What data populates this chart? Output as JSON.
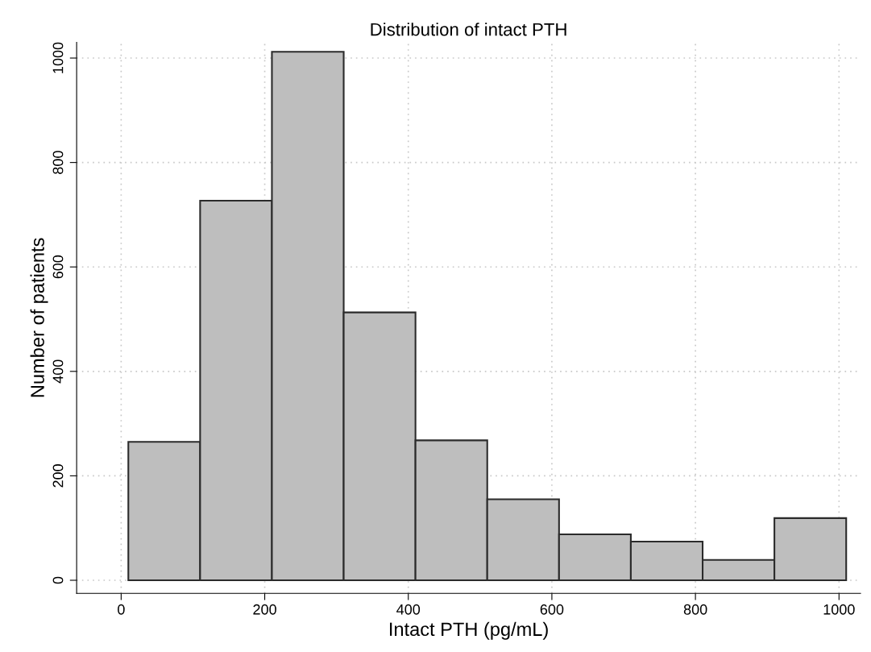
{
  "chart_data": {
    "type": "histogram",
    "title": "Distribution of intact PTH",
    "xlabel": "Intact PTH (pg/mL)",
    "ylabel": "Number of patients",
    "bins": [
      10,
      110,
      210,
      310,
      410,
      510,
      610,
      710,
      810,
      910,
      1010
    ],
    "values": [
      265,
      727,
      1012,
      513,
      268,
      155,
      88,
      74,
      39,
      119
    ],
    "color": "#bebebe",
    "xlim": [
      -62,
      1030
    ],
    "ylim": [
      -25,
      1030
    ],
    "xticks": [
      0,
      200,
      400,
      600,
      800,
      1000
    ],
    "yticks": [
      0,
      200,
      400,
      600,
      800,
      1000
    ],
    "grid": true
  }
}
